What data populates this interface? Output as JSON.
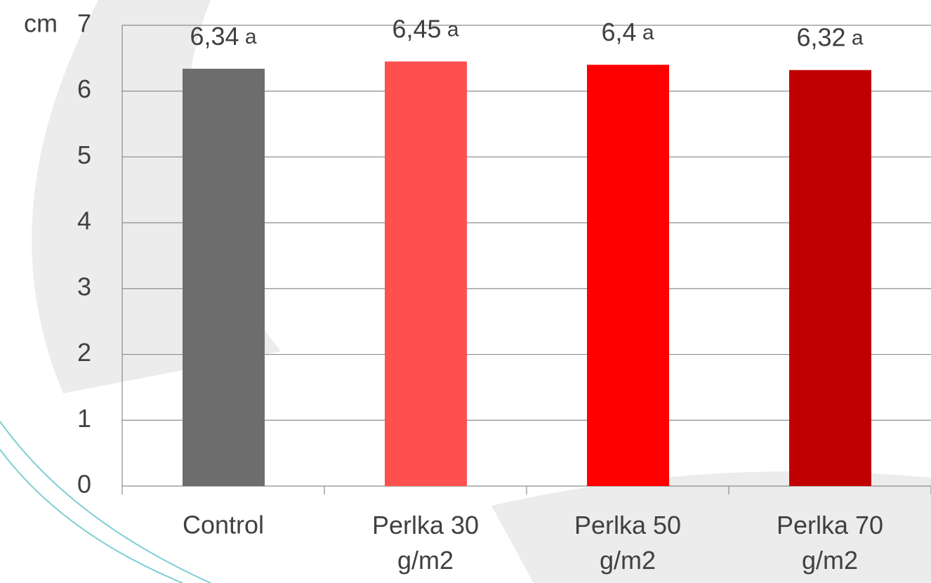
{
  "chart_data": {
    "type": "bar",
    "y_label": "cm",
    "categories": [
      "Control",
      "Perlka 30 g/m2",
      "Perlka 50 g/m2",
      "Perlka 70 g/m2"
    ],
    "values": [
      6.34,
      6.45,
      6.4,
      6.32
    ],
    "value_labels": [
      "6,34",
      "6,45",
      "6,4",
      "6,32"
    ],
    "letters": [
      "a",
      "a",
      "a",
      "a"
    ],
    "colors": [
      "#6d6d6d",
      "#ff5050",
      "#ff0000",
      "#c00000"
    ],
    "ylim": [
      0,
      7
    ],
    "yticks": [
      0,
      1,
      2,
      3,
      4,
      5,
      6,
      7
    ],
    "grid": true
  }
}
